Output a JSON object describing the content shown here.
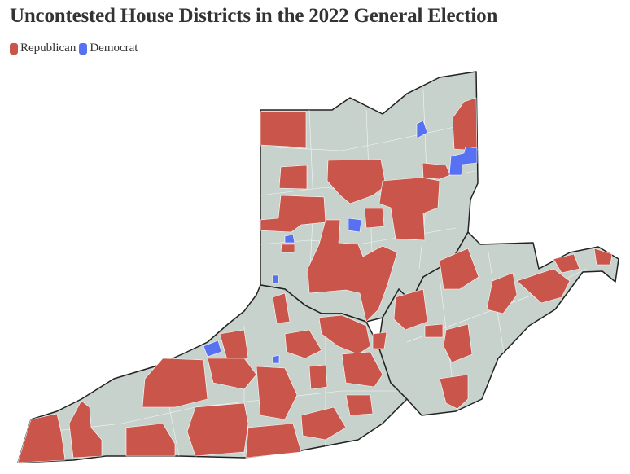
{
  "title": "Uncontested House Districts in the 2022 General Election",
  "legend": [
    {
      "label": "Republican",
      "color": "#c9554b"
    },
    {
      "label": "Democrat",
      "color": "#5870f2"
    }
  ]
}
